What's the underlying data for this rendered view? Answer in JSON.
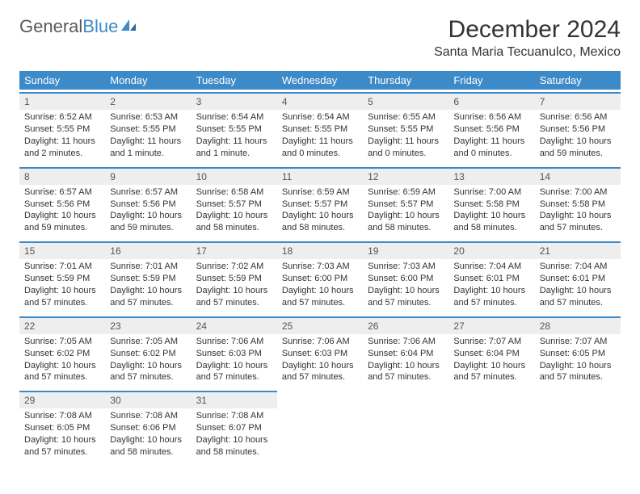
{
  "logo": {
    "part1": "General",
    "part2": "Blue"
  },
  "title": "December 2024",
  "location": "Santa Maria Tecuanulco, Mexico",
  "colors": {
    "header_bg": "#3d8ac9",
    "header_fg": "#ffffff",
    "daynum_bg": "#eeeeee",
    "border": "#3d8ac9",
    "text": "#333333"
  },
  "day_names": [
    "Sunday",
    "Monday",
    "Tuesday",
    "Wednesday",
    "Thursday",
    "Friday",
    "Saturday"
  ],
  "weeks": [
    [
      {
        "n": "1",
        "sr": "Sunrise: 6:52 AM",
        "ss": "Sunset: 5:55 PM",
        "dl": "Daylight: 11 hours and 2 minutes."
      },
      {
        "n": "2",
        "sr": "Sunrise: 6:53 AM",
        "ss": "Sunset: 5:55 PM",
        "dl": "Daylight: 11 hours and 1 minute."
      },
      {
        "n": "3",
        "sr": "Sunrise: 6:54 AM",
        "ss": "Sunset: 5:55 PM",
        "dl": "Daylight: 11 hours and 1 minute."
      },
      {
        "n": "4",
        "sr": "Sunrise: 6:54 AM",
        "ss": "Sunset: 5:55 PM",
        "dl": "Daylight: 11 hours and 0 minutes."
      },
      {
        "n": "5",
        "sr": "Sunrise: 6:55 AM",
        "ss": "Sunset: 5:55 PM",
        "dl": "Daylight: 11 hours and 0 minutes."
      },
      {
        "n": "6",
        "sr": "Sunrise: 6:56 AM",
        "ss": "Sunset: 5:56 PM",
        "dl": "Daylight: 11 hours and 0 minutes."
      },
      {
        "n": "7",
        "sr": "Sunrise: 6:56 AM",
        "ss": "Sunset: 5:56 PM",
        "dl": "Daylight: 10 hours and 59 minutes."
      }
    ],
    [
      {
        "n": "8",
        "sr": "Sunrise: 6:57 AM",
        "ss": "Sunset: 5:56 PM",
        "dl": "Daylight: 10 hours and 59 minutes."
      },
      {
        "n": "9",
        "sr": "Sunrise: 6:57 AM",
        "ss": "Sunset: 5:56 PM",
        "dl": "Daylight: 10 hours and 59 minutes."
      },
      {
        "n": "10",
        "sr": "Sunrise: 6:58 AM",
        "ss": "Sunset: 5:57 PM",
        "dl": "Daylight: 10 hours and 58 minutes."
      },
      {
        "n": "11",
        "sr": "Sunrise: 6:59 AM",
        "ss": "Sunset: 5:57 PM",
        "dl": "Daylight: 10 hours and 58 minutes."
      },
      {
        "n": "12",
        "sr": "Sunrise: 6:59 AM",
        "ss": "Sunset: 5:57 PM",
        "dl": "Daylight: 10 hours and 58 minutes."
      },
      {
        "n": "13",
        "sr": "Sunrise: 7:00 AM",
        "ss": "Sunset: 5:58 PM",
        "dl": "Daylight: 10 hours and 58 minutes."
      },
      {
        "n": "14",
        "sr": "Sunrise: 7:00 AM",
        "ss": "Sunset: 5:58 PM",
        "dl": "Daylight: 10 hours and 57 minutes."
      }
    ],
    [
      {
        "n": "15",
        "sr": "Sunrise: 7:01 AM",
        "ss": "Sunset: 5:59 PM",
        "dl": "Daylight: 10 hours and 57 minutes."
      },
      {
        "n": "16",
        "sr": "Sunrise: 7:01 AM",
        "ss": "Sunset: 5:59 PM",
        "dl": "Daylight: 10 hours and 57 minutes."
      },
      {
        "n": "17",
        "sr": "Sunrise: 7:02 AM",
        "ss": "Sunset: 5:59 PM",
        "dl": "Daylight: 10 hours and 57 minutes."
      },
      {
        "n": "18",
        "sr": "Sunrise: 7:03 AM",
        "ss": "Sunset: 6:00 PM",
        "dl": "Daylight: 10 hours and 57 minutes."
      },
      {
        "n": "19",
        "sr": "Sunrise: 7:03 AM",
        "ss": "Sunset: 6:00 PM",
        "dl": "Daylight: 10 hours and 57 minutes."
      },
      {
        "n": "20",
        "sr": "Sunrise: 7:04 AM",
        "ss": "Sunset: 6:01 PM",
        "dl": "Daylight: 10 hours and 57 minutes."
      },
      {
        "n": "21",
        "sr": "Sunrise: 7:04 AM",
        "ss": "Sunset: 6:01 PM",
        "dl": "Daylight: 10 hours and 57 minutes."
      }
    ],
    [
      {
        "n": "22",
        "sr": "Sunrise: 7:05 AM",
        "ss": "Sunset: 6:02 PM",
        "dl": "Daylight: 10 hours and 57 minutes."
      },
      {
        "n": "23",
        "sr": "Sunrise: 7:05 AM",
        "ss": "Sunset: 6:02 PM",
        "dl": "Daylight: 10 hours and 57 minutes."
      },
      {
        "n": "24",
        "sr": "Sunrise: 7:06 AM",
        "ss": "Sunset: 6:03 PM",
        "dl": "Daylight: 10 hours and 57 minutes."
      },
      {
        "n": "25",
        "sr": "Sunrise: 7:06 AM",
        "ss": "Sunset: 6:03 PM",
        "dl": "Daylight: 10 hours and 57 minutes."
      },
      {
        "n": "26",
        "sr": "Sunrise: 7:06 AM",
        "ss": "Sunset: 6:04 PM",
        "dl": "Daylight: 10 hours and 57 minutes."
      },
      {
        "n": "27",
        "sr": "Sunrise: 7:07 AM",
        "ss": "Sunset: 6:04 PM",
        "dl": "Daylight: 10 hours and 57 minutes."
      },
      {
        "n": "28",
        "sr": "Sunrise: 7:07 AM",
        "ss": "Sunset: 6:05 PM",
        "dl": "Daylight: 10 hours and 57 minutes."
      }
    ],
    [
      {
        "n": "29",
        "sr": "Sunrise: 7:08 AM",
        "ss": "Sunset: 6:05 PM",
        "dl": "Daylight: 10 hours and 57 minutes."
      },
      {
        "n": "30",
        "sr": "Sunrise: 7:08 AM",
        "ss": "Sunset: 6:06 PM",
        "dl": "Daylight: 10 hours and 58 minutes."
      },
      {
        "n": "31",
        "sr": "Sunrise: 7:08 AM",
        "ss": "Sunset: 6:07 PM",
        "dl": "Daylight: 10 hours and 58 minutes."
      },
      null,
      null,
      null,
      null
    ]
  ]
}
